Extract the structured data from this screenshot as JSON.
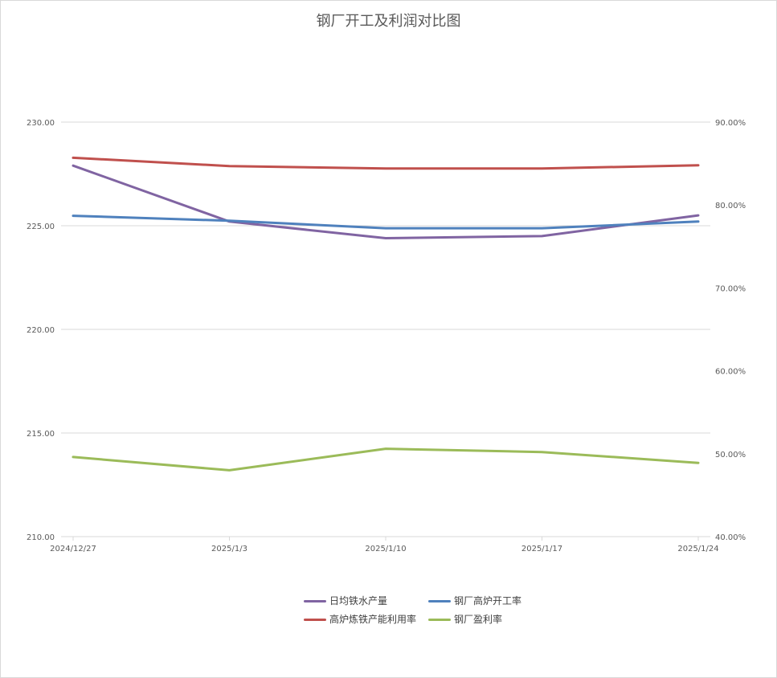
{
  "chart_data": {
    "type": "line",
    "title": "钢厂开工及利润对比图",
    "categories": [
      "2024/12/27",
      "2025/1/3",
      "2025/1/10",
      "2025/1/17",
      "2025/1/24"
    ],
    "y_left": {
      "range": [
        210,
        230
      ],
      "ticks": [
        "210.00",
        "215.00",
        "220.00",
        "225.00",
        "230.00"
      ]
    },
    "y_right": {
      "range": [
        0.4,
        0.9
      ],
      "ticks": [
        "40.00%",
        "50.00%",
        "60.00%",
        "70.00%",
        "80.00%",
        "90.00%"
      ]
    },
    "grid": true,
    "legend_position": "bottom",
    "series": [
      {
        "name": "日均铁水产量",
        "axis": "left",
        "color": "#8064a2",
        "values": [
          227.9,
          225.2,
          224.4,
          224.5,
          225.5
        ]
      },
      {
        "name": "钢厂高炉开工率",
        "axis": "right",
        "color": "#4f81bd",
        "values": [
          0.787,
          0.781,
          0.772,
          0.772,
          0.78
        ]
      },
      {
        "name": "高炉炼铁产能利用率",
        "axis": "right",
        "color": "#c0504d",
        "values": [
          0.857,
          0.847,
          0.844,
          0.844,
          0.848
        ]
      },
      {
        "name": "钢厂盈利率",
        "axis": "right",
        "color": "#9bbb59",
        "values": [
          0.496,
          0.48,
          0.506,
          0.502,
          0.489
        ]
      }
    ]
  }
}
